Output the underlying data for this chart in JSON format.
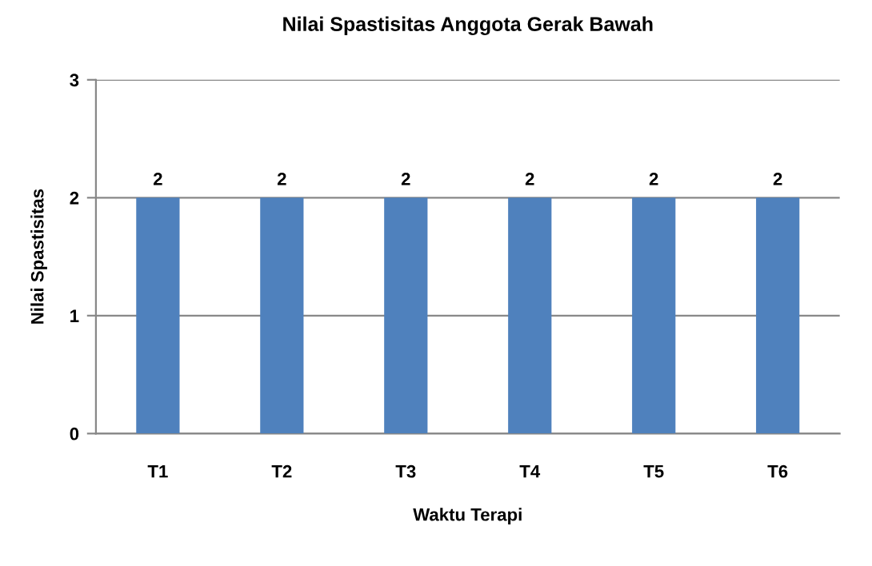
{
  "chart_data": {
    "type": "bar",
    "title": "Nilai Spastisitas Anggota Gerak Bawah",
    "xlabel": "Waktu Terapi",
    "ylabel": "Nilai Spastisitas",
    "categories": [
      "T1",
      "T2",
      "T3",
      "T4",
      "T5",
      "T6"
    ],
    "values": [
      2,
      2,
      2,
      2,
      2,
      2
    ],
    "color": "#4f81bd",
    "ylim": [
      0,
      3
    ],
    "yticks": [
      0,
      1,
      2,
      3
    ],
    "grid": "y",
    "data_labels": true
  }
}
